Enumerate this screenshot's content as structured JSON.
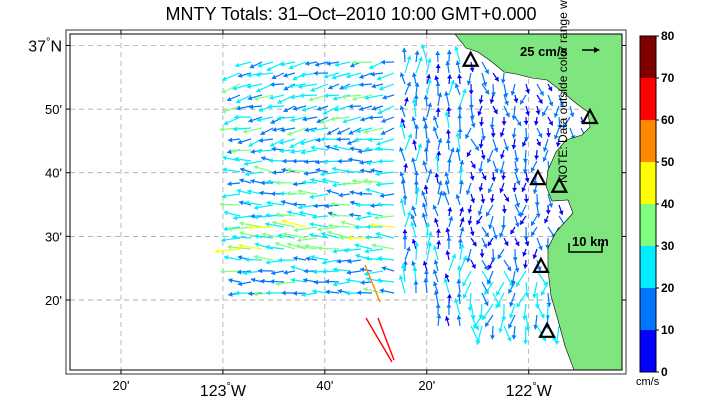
{
  "title": "MNTY Totals: 31–Oct–2010 10:00 GMT+0.000",
  "map": {
    "lat_ticks": [
      {
        "value": 37.0,
        "label": "37°N",
        "deg": "37",
        "dir": "N"
      },
      {
        "value": 36.8333,
        "label": "50'"
      },
      {
        "value": 36.6667,
        "label": "40'"
      },
      {
        "value": 36.5,
        "label": "30'"
      },
      {
        "value": 36.3333,
        "label": "20'"
      }
    ],
    "lon_ticks": [
      {
        "value": -123.3333,
        "label": "20'"
      },
      {
        "value": -123.0,
        "label": "123°W",
        "deg": "123",
        "dir": "W"
      },
      {
        "value": -122.6667,
        "label": "40'"
      },
      {
        "value": -122.3333,
        "label": "20'"
      },
      {
        "value": -122.0,
        "label": "122°W",
        "deg": "122",
        "dir": "W"
      }
    ],
    "lon_range": [
      -123.5,
      -121.695
    ],
    "lat_range": [
      36.15,
      37.03
    ],
    "grid": "dashed",
    "land_color": "#7fe57f",
    "scale_vector_label": "25 cm/s",
    "scale_bar_label": "10 km",
    "stations": [
      {
        "lon": -122.19,
        "lat": 36.96
      },
      {
        "lon": -121.8,
        "lat": 36.81
      },
      {
        "lon": -121.97,
        "lat": 36.65
      },
      {
        "lon": -121.9,
        "lat": 36.63
      },
      {
        "lon": -121.96,
        "lat": 36.42
      },
      {
        "lon": -121.94,
        "lat": 36.25
      }
    ]
  },
  "colorbar": {
    "ticks": [
      "0",
      "10",
      "20",
      "30",
      "40",
      "50",
      "60",
      "70",
      "80"
    ],
    "unit": "cm/s",
    "note": "NOTE: Data outside color range will be saturated.",
    "colors": [
      "#0000ff",
      "#0077ff",
      "#00eeff",
      "#7fff7f",
      "#ffff00",
      "#ff8800",
      "#ff0000",
      "#800000"
    ]
  }
}
